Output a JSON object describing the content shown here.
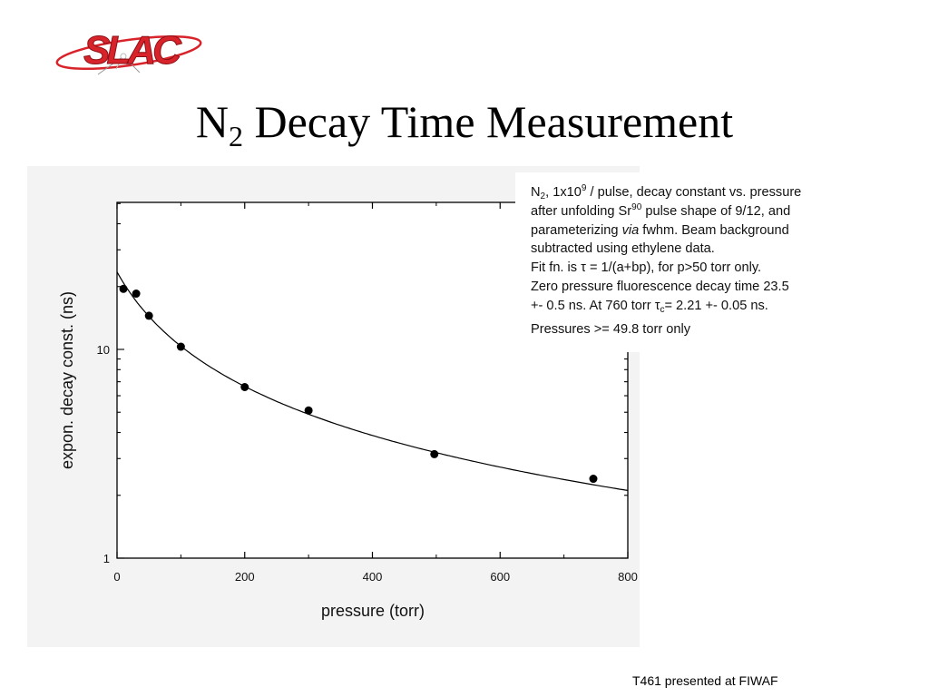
{
  "slide": {
    "logo_text": "SLAC",
    "title_prefix": "N",
    "title_sub": "2",
    "title_rest": " Decay Time Measurement",
    "footer": "T461 presented at FIWAF"
  },
  "annotation": {
    "l1a": "N",
    "l1b": "2",
    "l1c": ", 1x10",
    "l1d": "9",
    "l1e": " / pulse, decay constant vs. pressure",
    "l2a": "after unfolding Sr",
    "l2b": "90",
    "l2c": " pulse shape of 9/12, and",
    "l3a": "parameterizing ",
    "l3b": "via",
    "l3c": " fwhm. Beam background",
    "l4": "subtracted using ethylene data.",
    "l5": "Fit fn. is τ = 1/(a+bp), for p>50 torr only.",
    "l6": "Zero pressure fluorescence decay time 23.5",
    "l7a": "+- 0.5 ns. At 760 torr τ",
    "l7b": "c",
    "l7c": "= 2.21 +- 0.05 ns.",
    "l8": "Pressures >= 49.8 torr only"
  },
  "colors": {
    "logo_red": "#d8232a",
    "ink": "#000000",
    "panel_bg": "#f3f3f3"
  },
  "chart_data": {
    "type": "scatter",
    "xlabel": "pressure (torr)",
    "ylabel": "expon. decay const. (ns)",
    "xlim": [
      0,
      800
    ],
    "ylim": [
      1,
      50
    ],
    "y_scale": "log",
    "x_ticks": [
      0,
      200,
      400,
      600,
      800
    ],
    "x_tick_labels": [
      "0",
      "200",
      "400",
      "600",
      "800"
    ],
    "y_tick_labels": [
      {
        "value": 1,
        "label": "1"
      },
      {
        "value": 10,
        "label": "10"
      }
    ],
    "grid": false,
    "points": [
      {
        "x": 10,
        "y": 19.5
      },
      {
        "x": 30,
        "y": 18.5
      },
      {
        "x": 50,
        "y": 14.5
      },
      {
        "x": 100,
        "y": 10.3
      },
      {
        "x": 200,
        "y": 6.6
      },
      {
        "x": 300,
        "y": 5.1
      },
      {
        "x": 497,
        "y": 3.15
      },
      {
        "x": 746,
        "y": 2.4
      }
    ],
    "fit": {
      "formula": "tau = 1/(a+b*p)",
      "tau0": 23.5,
      "tau_760": 2.21,
      "p_max": 800
    }
  }
}
